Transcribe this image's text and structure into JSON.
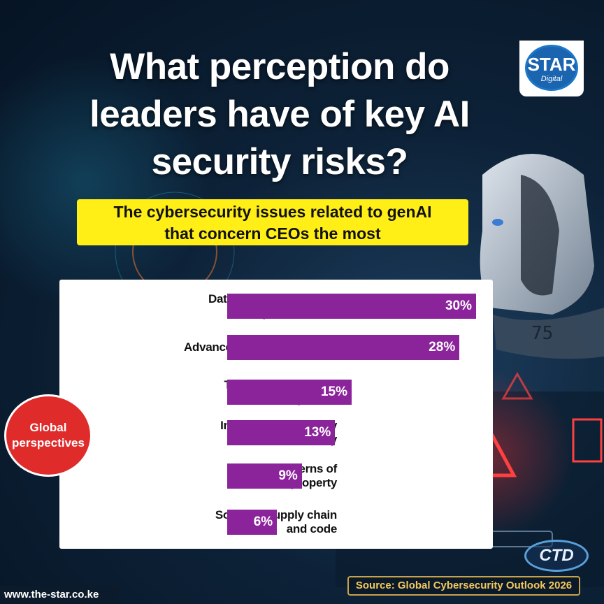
{
  "header": {
    "title_lines": [
      "What perception do",
      "leaders have of key AI",
      "security risks?"
    ],
    "subtitle_lines": [
      "The cybersecurity issues related to genAI",
      "that concern CEOs the most"
    ]
  },
  "logo": {
    "name": "STAR",
    "sub": "Digital"
  },
  "badge": {
    "lines": [
      "Global",
      "perspectives"
    ]
  },
  "chart_data": {
    "type": "bar",
    "orientation": "horizontal",
    "categories": [
      [
        "Data leaks (exposure of",
        "personal data"
      ],
      [
        "Advancement of adversarial"
      ],
      [
        "Technical security of",
        "the AI systems"
      ],
      [
        "Increased complexity",
        "of security"
      ],
      [
        "Legal concerns of",
        "intellectual property"
      ],
      [
        "Software supply chain",
        "and code"
      ]
    ],
    "values": [
      30,
      28,
      15,
      13,
      9,
      6
    ],
    "value_labels": [
      "30%",
      "28%",
      "15%",
      "13%",
      "9%",
      "6%"
    ],
    "unit": "%",
    "bar_color": "#8b249b"
  },
  "footer": {
    "url": "www.the-star.co.ke",
    "source": "Source: Global Cybersecurity Outlook 2026",
    "ctd_logo": "CTD"
  },
  "colors": {
    "accent_yellow": "#ffef16",
    "badge_red": "#e02b2b",
    "source_gold": "#f3c85b"
  }
}
